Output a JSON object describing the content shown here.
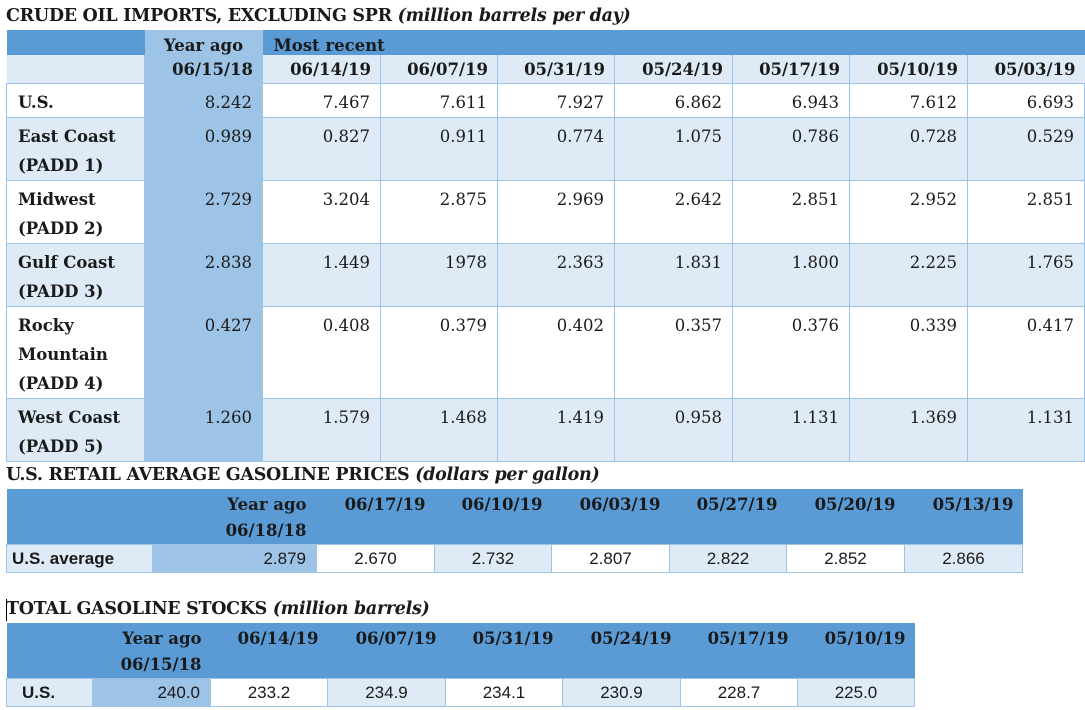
{
  "imports": {
    "title": "CRUDE OIL IMPORTS, EXCLUDING SPR",
    "subtitle": "(million barrels per day)",
    "year_ago_label": "Year ago",
    "most_recent_label": "Most recent",
    "dates": [
      "06/15/18",
      "06/14/19",
      "06/07/19",
      "05/31/19",
      "05/24/19",
      "05/17/19",
      "05/10/19",
      "05/03/19"
    ],
    "rows": [
      {
        "label": "U.S.",
        "values": [
          "8.242",
          "7.467",
          "7.611",
          "7.927",
          "6.862",
          "6.943",
          "7.612",
          "6.693"
        ]
      },
      {
        "label": "East Coast (PADD 1)",
        "values": [
          "0.989",
          "0.827",
          "0.911",
          "0.774",
          "1.075",
          "0.786",
          "0.728",
          "0.529"
        ]
      },
      {
        "label": "Midwest (PADD 2)",
        "values": [
          "2.729",
          "3.204",
          "2.875",
          "2.969",
          "2.642",
          "2.851",
          "2.952",
          "2.851"
        ]
      },
      {
        "label": "Gulf Coast (PADD 3)",
        "values": [
          "2.838",
          "1.449",
          "1978",
          "2.363",
          "1.831",
          "1.800",
          "2.225",
          "1.765"
        ]
      },
      {
        "label": "Rocky Mountain (PADD 4)",
        "values": [
          "0.427",
          "0.408",
          "0.379",
          "0.402",
          "0.357",
          "0.376",
          "0.339",
          "0.417"
        ]
      },
      {
        "label": "West Coast (PADD 5)",
        "values": [
          "1.260",
          "1.579",
          "1.468",
          "1.419",
          "0.958",
          "1.131",
          "1.369",
          "1.131"
        ]
      }
    ]
  },
  "gasoline_prices": {
    "title": "U.S. RETAIL AVERAGE GASOLINE PRICES",
    "subtitle": "(dollars per gallon)",
    "headers": [
      "Year ago 06/18/18",
      "06/17/19",
      "06/10/19",
      "06/03/19",
      "05/27/19",
      "05/20/19",
      "05/13/19"
    ],
    "row_label": "U.S. average",
    "values": [
      "2.879",
      "2.670",
      "2.732",
      "2.807",
      "2.822",
      "2.852",
      "2.866"
    ]
  },
  "gasoline_stocks": {
    "title": "TOTAL GASOLINE STOCKS",
    "subtitle": "(million barrels)",
    "headers": [
      "Year ago 06/15/18",
      "06/14/19",
      "06/07/19",
      "05/31/19",
      "05/24/19",
      "05/17/19",
      "05/10/19"
    ],
    "row_label": "U.S.",
    "values": [
      "240.0",
      "233.2",
      "234.9",
      "234.1",
      "230.9",
      "228.7",
      "225.0"
    ]
  }
}
